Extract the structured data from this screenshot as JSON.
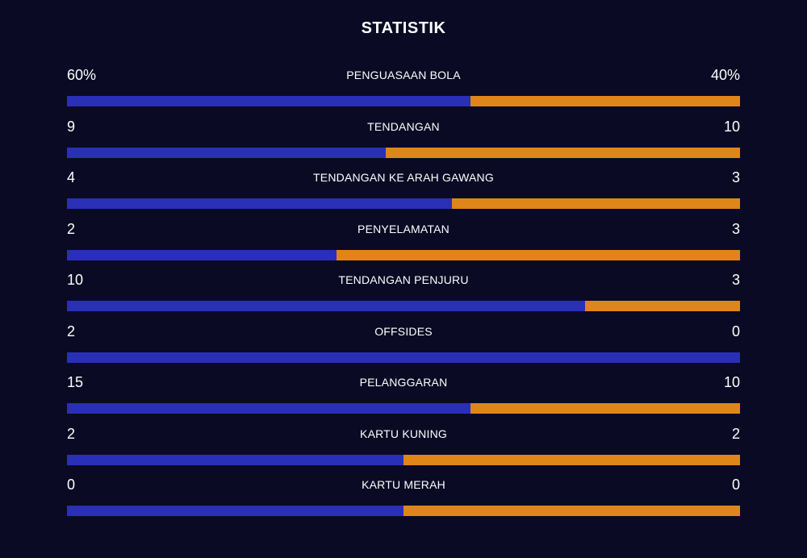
{
  "title": "STATISTIK",
  "colors": {
    "background": "#0a0a24",
    "home": "#2a2fb8",
    "away": "#e0851a",
    "text": "#ffffff"
  },
  "stats": [
    {
      "label": "PENGUASAAN BOLA",
      "home": "60%",
      "away": "40%",
      "home_share": 0.6
    },
    {
      "label": "TENDANGAN",
      "home": "9",
      "away": "10",
      "home_share": 0.4737
    },
    {
      "label": "TENDANGAN KE ARAH GAWANG",
      "home": "4",
      "away": "3",
      "home_share": 0.5714
    },
    {
      "label": "PENYELAMATAN",
      "home": "2",
      "away": "3",
      "home_share": 0.4
    },
    {
      "label": "TENDANGAN PENJURU",
      "home": "10",
      "away": "3",
      "home_share": 0.7692
    },
    {
      "label": "OFFSIDES",
      "home": "2",
      "away": "0",
      "home_share": 1.0
    },
    {
      "label": "PELANGGARAN",
      "home": "15",
      "away": "10",
      "home_share": 0.6
    },
    {
      "label": "KARTU KUNING",
      "home": "2",
      "away": "2",
      "home_share": 0.5
    },
    {
      "label": "KARTU MERAH",
      "home": "0",
      "away": "0",
      "home_share": 0.5
    }
  ]
}
